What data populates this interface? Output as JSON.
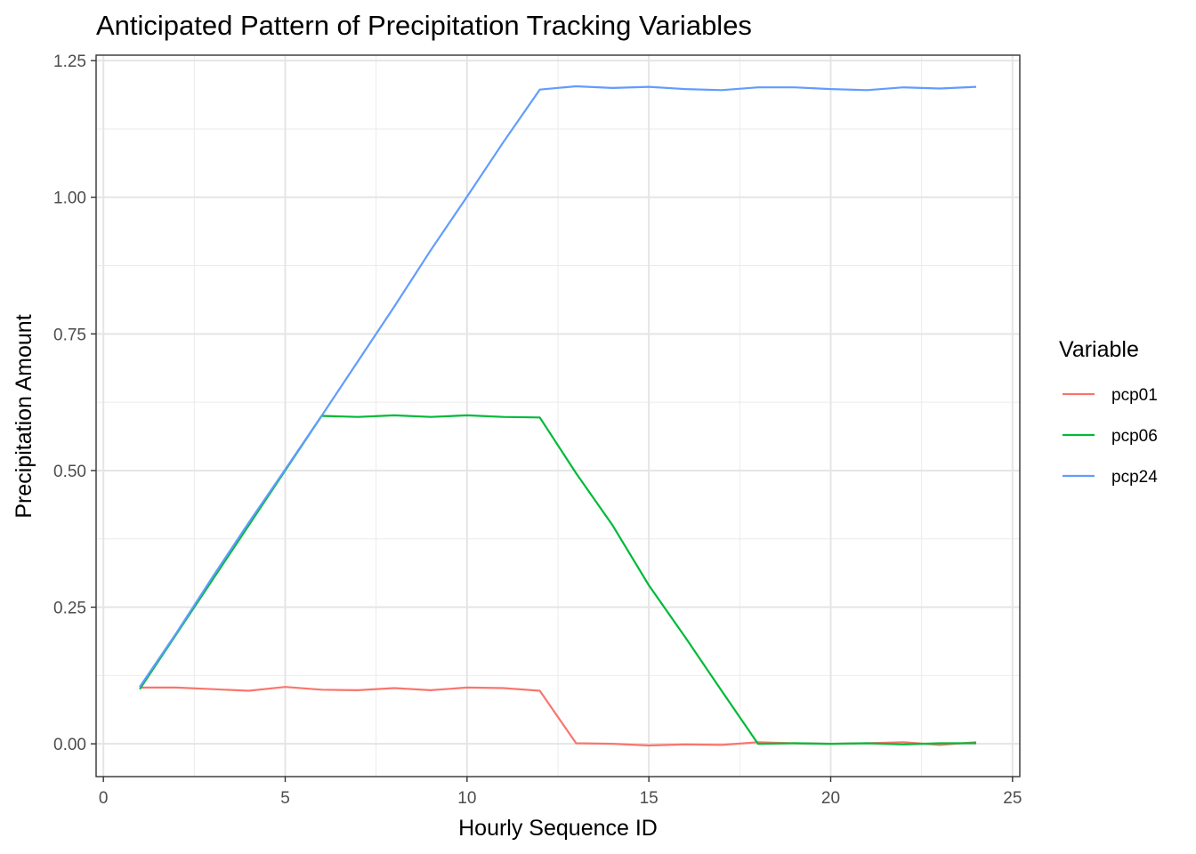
{
  "chart_data": {
    "type": "line",
    "title": "Anticipated Pattern of Precipitation Tracking Variables",
    "xlabel": "Hourly Sequence ID",
    "ylabel": "Precipitation Amount",
    "xlim": [
      -0.2,
      25.2
    ],
    "ylim": [
      -0.06,
      1.26
    ],
    "xticks": [
      0,
      5,
      10,
      15,
      20,
      25
    ],
    "xtick_labels": [
      "0",
      "5",
      "10",
      "15",
      "20",
      "25"
    ],
    "yticks": [
      0,
      0.25,
      0.5,
      0.75,
      1,
      1.25
    ],
    "ytick_labels": [
      "0.00",
      "0.25",
      "0.50",
      "0.75",
      "1.00",
      "1.25"
    ],
    "grid": true,
    "legend_title": "Variable",
    "legend_position": "right",
    "x": [
      1,
      2,
      3,
      4,
      5,
      6,
      7,
      8,
      9,
      10,
      11,
      12,
      13,
      14,
      15,
      16,
      17,
      18,
      19,
      20,
      21,
      22,
      23,
      24
    ],
    "series": [
      {
        "name": "pcp01",
        "color": "#F8766D",
        "values": [
          0.103,
          0.103,
          0.1,
          0.097,
          0.104,
          0.099,
          0.098,
          0.102,
          0.098,
          0.103,
          0.102,
          0.097,
          0.001,
          0.0,
          -0.003,
          -0.001,
          -0.002,
          0.003,
          0.001,
          0.0,
          0.001,
          0.003,
          -0.002,
          0.003
        ]
      },
      {
        "name": "pcp06",
        "color": "#00BA38",
        "values": [
          0.1,
          0.2,
          0.3,
          0.4,
          0.5,
          0.6,
          0.598,
          0.601,
          0.598,
          0.601,
          0.598,
          0.597,
          0.495,
          0.4,
          0.29,
          0.195,
          0.097,
          0.0,
          0.001,
          0.0,
          0.001,
          -0.001,
          0.001,
          0.001
        ]
      },
      {
        "name": "pcp24",
        "color": "#619CFF",
        "values": [
          0.104,
          0.202,
          0.305,
          0.405,
          0.502,
          0.6,
          0.7,
          0.8,
          0.903,
          1.001,
          1.101,
          1.197,
          1.203,
          1.2,
          1.202,
          1.198,
          1.196,
          1.201,
          1.201,
          1.198,
          1.196,
          1.201,
          1.199,
          1.202
        ]
      }
    ]
  }
}
